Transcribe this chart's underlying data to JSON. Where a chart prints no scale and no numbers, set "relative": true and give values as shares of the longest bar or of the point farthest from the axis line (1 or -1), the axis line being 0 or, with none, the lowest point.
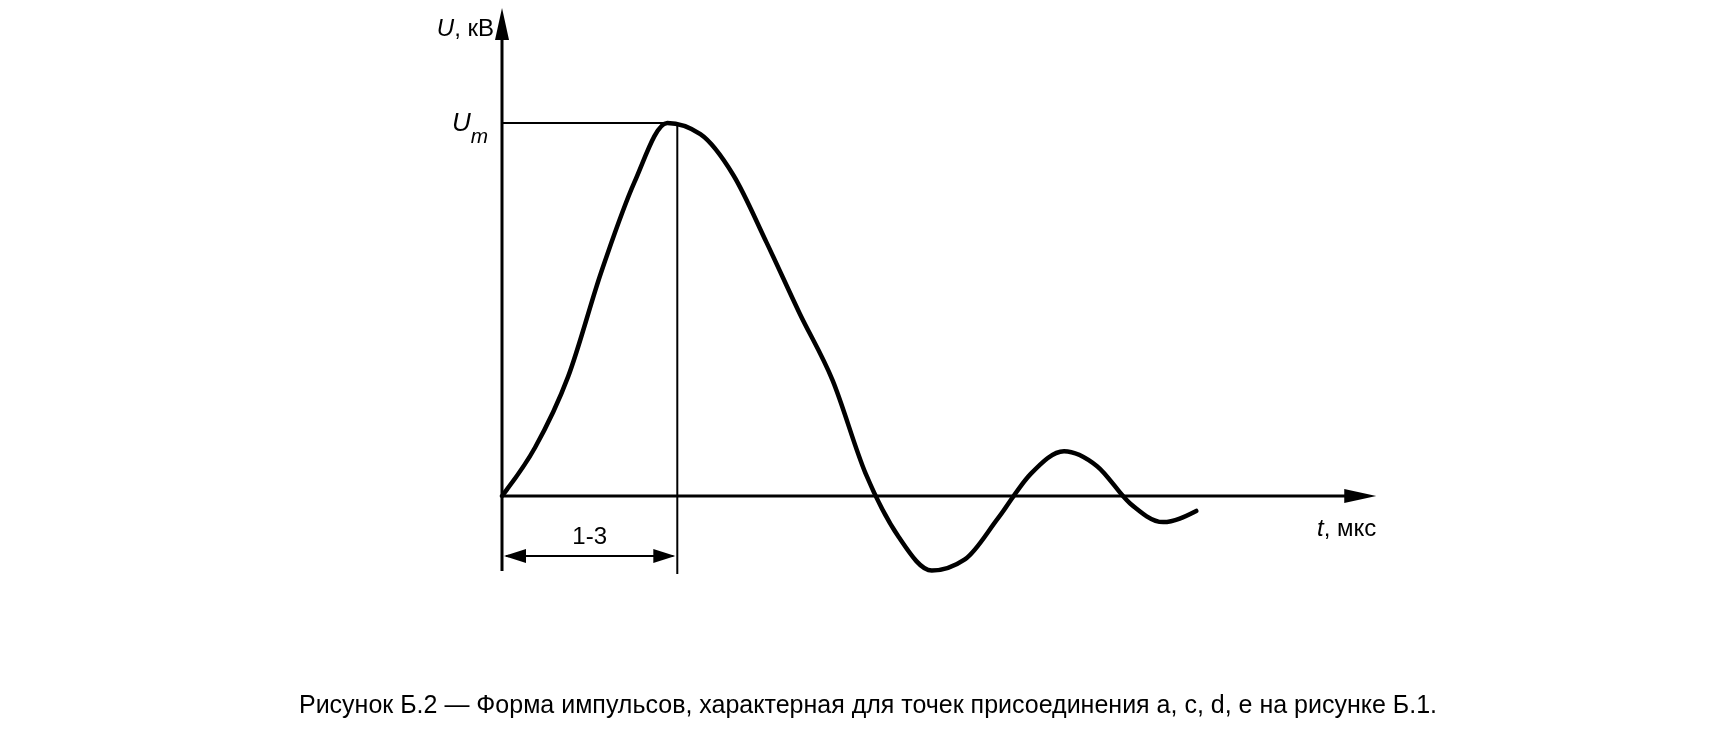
{
  "chart_data": {
    "type": "line",
    "relative": true,
    "xlabel": "t, мкс",
    "ylabel": "U, кВ",
    "categories": [
      null,
      null,
      null,
      null,
      null,
      null,
      null,
      null,
      null,
      null,
      null,
      null,
      null,
      null,
      null,
      null,
      null,
      null,
      null,
      null,
      null,
      null
    ],
    "series": [
      {
        "color": "#000000",
        "values": [
          0,
          0.13,
          0.32,
          0.6,
          0.84,
          1,
          0.97,
          0.86,
          0.68,
          0.49,
          0.31,
          0.06,
          -0.11,
          -0.2,
          -0.17,
          -0.06,
          0.06,
          0.12,
          0.08,
          -0.02,
          -0.07,
          -0.04
        ]
      }
    ],
    "annotations": [
      "U$_{m}$",
      "1-3",
      "Рисунок Б.2 — Форма импульсов, характерная для точек присоединения a, c, d, e на рисунке Б.1."
    ],
    "grid": false,
    "marker": "none",
    "line_style": "solid"
  }
}
